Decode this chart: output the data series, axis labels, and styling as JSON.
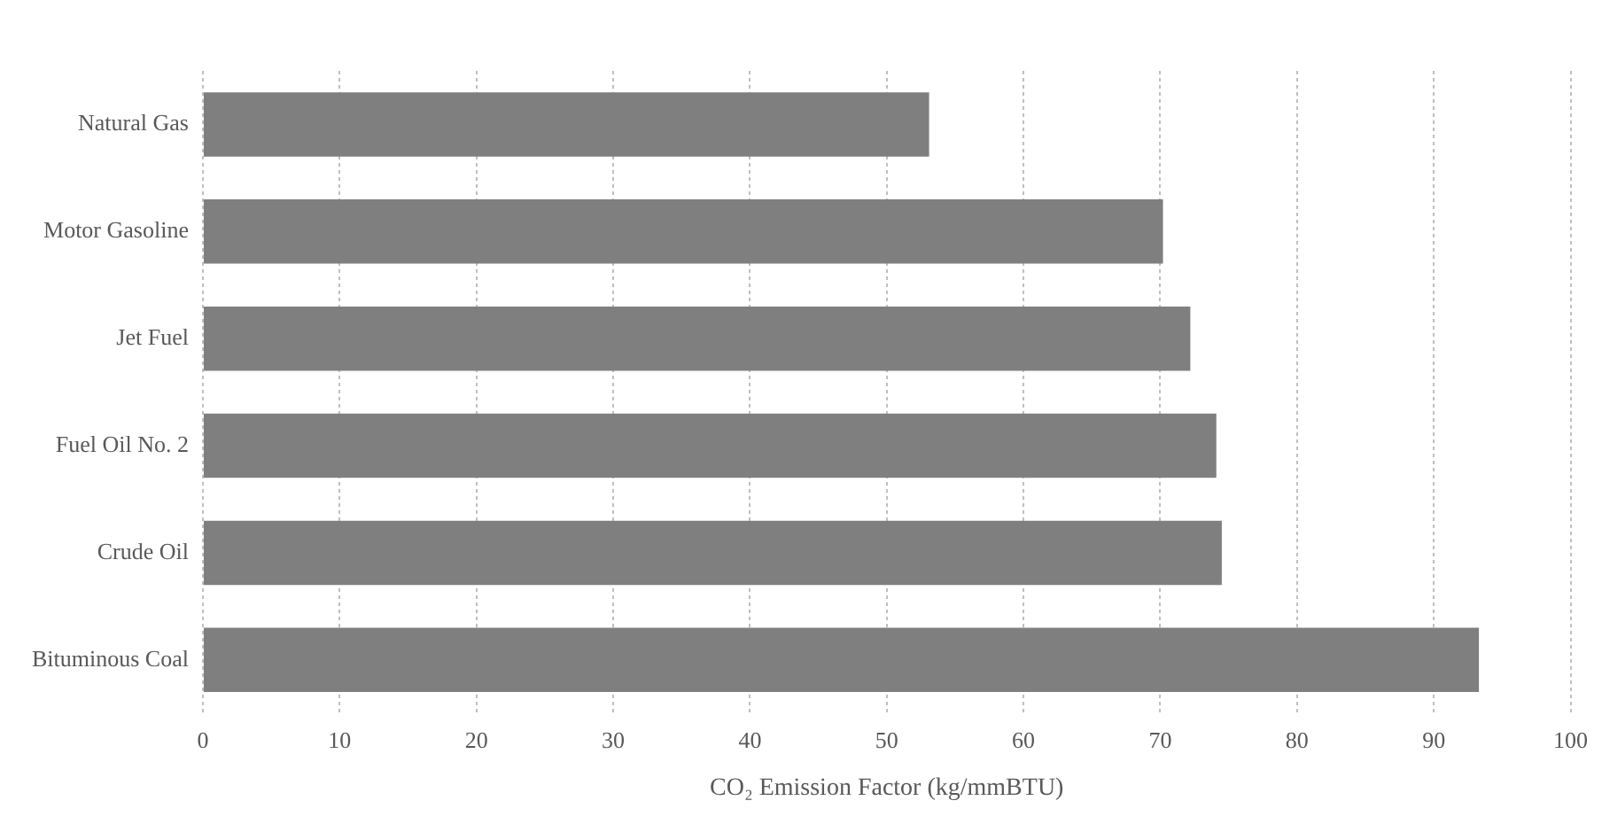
{
  "chart_data": {
    "type": "bar",
    "orientation": "horizontal",
    "xlabel": "CO₂ Emission Factor (kg/mmBTU)",
    "categories": [
      "Natural Gas",
      "Motor Gasoline",
      "Jet Fuel",
      "Fuel Oil No. 2",
      "Crude Oil",
      "Bituminous Coal"
    ],
    "values": [
      53.1,
      70.2,
      72.2,
      74.1,
      74.5,
      93.3
    ],
    "color": "#7f7f7f",
    "xlim": [
      0,
      100
    ],
    "xticks": [
      0,
      10,
      20,
      30,
      40,
      50,
      60,
      70,
      80,
      90,
      100
    ],
    "grid": "x",
    "legend": false
  }
}
